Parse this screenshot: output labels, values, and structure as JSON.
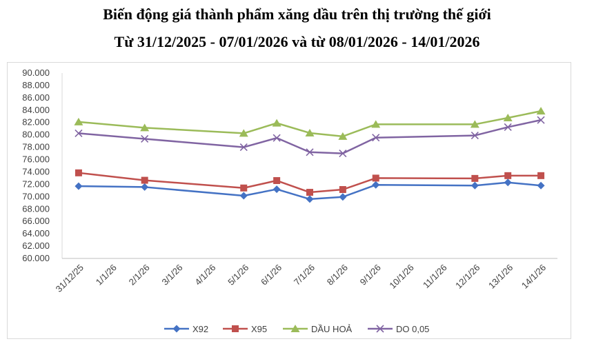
{
  "chart_data": {
    "type": "line",
    "title": "Biến động giá thành phẩm xăng dầu trên thị trường thế giới",
    "subtitle": "Từ 31/12/2025 - 07/01/2026 và từ 08/01/2026 - 14/01/2026",
    "categories": [
      "31/12/25",
      "1/1/26",
      "2/1/26",
      "3/1/26",
      "4/1/26",
      "5/1/26",
      "6/1/26",
      "7/1/26",
      "8/1/26",
      "9/1/26",
      "10/1/26",
      "11/1/26",
      "12/1/26",
      "13/1/26",
      "14/1/26"
    ],
    "ylim": [
      60000,
      90000
    ],
    "yticks": [
      "60.000",
      "62.000",
      "64.000",
      "66.000",
      "68.000",
      "70.000",
      "72.000",
      "74.000",
      "76.000",
      "78.000",
      "80.000",
      "82.000",
      "84.000",
      "86.000",
      "88.000",
      "90.000"
    ],
    "grid": false,
    "legend": "bottom",
    "series": [
      {
        "name": "X92",
        "color": "#4472c4",
        "marker": "diamond",
        "points": [
          [
            "31/12/25",
            71700
          ],
          [
            "2/1/26",
            71550
          ],
          [
            "5/1/26",
            70150
          ],
          [
            "6/1/26",
            71200
          ],
          [
            "7/1/26",
            69600
          ],
          [
            "8/1/26",
            69950
          ],
          [
            "9/1/26",
            71900
          ],
          [
            "12/1/26",
            71800
          ],
          [
            "13/1/26",
            72300
          ],
          [
            "14/1/26",
            71800
          ]
        ]
      },
      {
        "name": "X95",
        "color": "#c0504d",
        "marker": "square",
        "points": [
          [
            "31/12/25",
            73850
          ],
          [
            "2/1/26",
            72650
          ],
          [
            "5/1/26",
            71400
          ],
          [
            "6/1/26",
            72600
          ],
          [
            "7/1/26",
            70700
          ],
          [
            "8/1/26",
            71150
          ],
          [
            "9/1/26",
            73000
          ],
          [
            "12/1/26",
            72950
          ],
          [
            "13/1/26",
            73400
          ],
          [
            "14/1/26",
            73400
          ]
        ]
      },
      {
        "name": "DẦU HOẢ",
        "color": "#9bbb59",
        "marker": "triangle",
        "points": [
          [
            "31/12/25",
            82100
          ],
          [
            "2/1/26",
            81150
          ],
          [
            "5/1/26",
            80250
          ],
          [
            "6/1/26",
            81900
          ],
          [
            "7/1/26",
            80300
          ],
          [
            "8/1/26",
            79750
          ],
          [
            "9/1/26",
            81700
          ],
          [
            "12/1/26",
            81700
          ],
          [
            "13/1/26",
            82750
          ],
          [
            "14/1/26",
            83850
          ]
        ]
      },
      {
        "name": "DO 0,05",
        "color": "#8064a2",
        "marker": "x",
        "points": [
          [
            "31/12/25",
            80250
          ],
          [
            "2/1/26",
            79350
          ],
          [
            "5/1/26",
            78000
          ],
          [
            "6/1/26",
            79500
          ],
          [
            "7/1/26",
            77200
          ],
          [
            "8/1/26",
            77000
          ],
          [
            "9/1/26",
            79550
          ],
          [
            "12/1/26",
            79900
          ],
          [
            "13/1/26",
            81250
          ],
          [
            "14/1/26",
            82400
          ]
        ]
      }
    ]
  }
}
